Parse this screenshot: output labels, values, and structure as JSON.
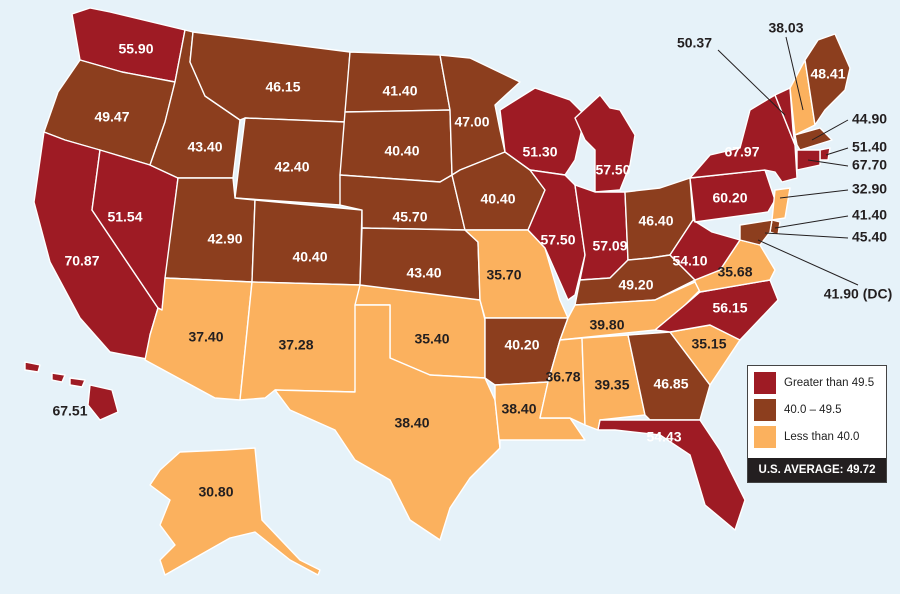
{
  "colors": {
    "background": "#e6f2f9",
    "high": "#9e1b24",
    "mid": "#8c3e1e",
    "low": "#fbb15e",
    "border": "#ffffff",
    "label_dark": "#231f20",
    "label_light": "#ffffff"
  },
  "legend": {
    "items": [
      {
        "label": "Greater than 49.5",
        "color": "#9e1b24"
      },
      {
        "label": "40.0 – 49.5",
        "color": "#8c3e1e"
      },
      {
        "label": "Less than 40.0",
        "color": "#fbb15e"
      }
    ],
    "average_label": "U.S. AVERAGE: 49.72"
  },
  "states": [
    {
      "id": "WA",
      "value": "55.90",
      "class": "high"
    },
    {
      "id": "OR",
      "value": "49.47",
      "class": "mid"
    },
    {
      "id": "CA",
      "value": "70.87",
      "class": "high"
    },
    {
      "id": "NV",
      "value": "51.54",
      "class": "high"
    },
    {
      "id": "ID",
      "value": "43.40",
      "class": "mid"
    },
    {
      "id": "MT",
      "value": "46.15",
      "class": "mid"
    },
    {
      "id": "WY",
      "value": "42.40",
      "class": "mid"
    },
    {
      "id": "UT",
      "value": "42.90",
      "class": "mid"
    },
    {
      "id": "AZ",
      "value": "37.40",
      "class": "low"
    },
    {
      "id": "CO",
      "value": "40.40",
      "class": "mid"
    },
    {
      "id": "NM",
      "value": "37.28",
      "class": "low"
    },
    {
      "id": "ND",
      "value": "41.40",
      "class": "mid"
    },
    {
      "id": "SD",
      "value": "40.40",
      "class": "mid"
    },
    {
      "id": "NE",
      "value": "45.70",
      "class": "mid"
    },
    {
      "id": "KS",
      "value": "43.40",
      "class": "mid"
    },
    {
      "id": "OK",
      "value": "35.40",
      "class": "low"
    },
    {
      "id": "TX",
      "value": "38.40",
      "class": "low"
    },
    {
      "id": "MN",
      "value": "47.00",
      "class": "mid"
    },
    {
      "id": "IA",
      "value": "40.40",
      "class": "mid"
    },
    {
      "id": "MO",
      "value": "35.70",
      "class": "low"
    },
    {
      "id": "AR",
      "value": "40.20",
      "class": "mid"
    },
    {
      "id": "LA",
      "value": "38.40",
      "class": "low"
    },
    {
      "id": "WI",
      "value": "51.30",
      "class": "high"
    },
    {
      "id": "IL",
      "value": "57.50",
      "class": "high"
    },
    {
      "id": "MI",
      "value": "57.50",
      "class": "high"
    },
    {
      "id": "IN",
      "value": "57.09",
      "class": "high"
    },
    {
      "id": "OH",
      "value": "46.40",
      "class": "mid"
    },
    {
      "id": "KY",
      "value": "49.20",
      "class": "mid"
    },
    {
      "id": "TN",
      "value": "39.80",
      "class": "low"
    },
    {
      "id": "MS",
      "value": "36.78",
      "class": "low"
    },
    {
      "id": "AL",
      "value": "39.35",
      "class": "low"
    },
    {
      "id": "GA",
      "value": "46.85",
      "class": "mid"
    },
    {
      "id": "FL",
      "value": "54.43",
      "class": "high"
    },
    {
      "id": "SC",
      "value": "35.15",
      "class": "low"
    },
    {
      "id": "NC",
      "value": "56.15",
      "class": "high"
    },
    {
      "id": "VA",
      "value": "35.68",
      "class": "low"
    },
    {
      "id": "WV",
      "value": "54.10",
      "class": "high"
    },
    {
      "id": "PA",
      "value": "60.20",
      "class": "high"
    },
    {
      "id": "NY",
      "value": "67.97",
      "class": "high"
    },
    {
      "id": "VT",
      "value": "50.37",
      "class": "high"
    },
    {
      "id": "NH",
      "value": "38.03",
      "class": "low"
    },
    {
      "id": "ME",
      "value": "48.41",
      "class": "mid"
    },
    {
      "id": "MA",
      "value": "44.90",
      "class": "mid"
    },
    {
      "id": "RI",
      "value": "51.40",
      "class": "high"
    },
    {
      "id": "CT",
      "value": "67.70",
      "class": "high"
    },
    {
      "id": "NJ",
      "value": "32.90",
      "class": "low"
    },
    {
      "id": "DE",
      "value": "41.40",
      "class": "mid"
    },
    {
      "id": "MD",
      "value": "45.40",
      "class": "mid"
    },
    {
      "id": "DC",
      "value": "41.90 (DC)",
      "class": "mid"
    },
    {
      "id": "HI",
      "value": "67.51",
      "class": "high"
    },
    {
      "id": "AK",
      "value": "30.80",
      "class": "low"
    }
  ]
}
